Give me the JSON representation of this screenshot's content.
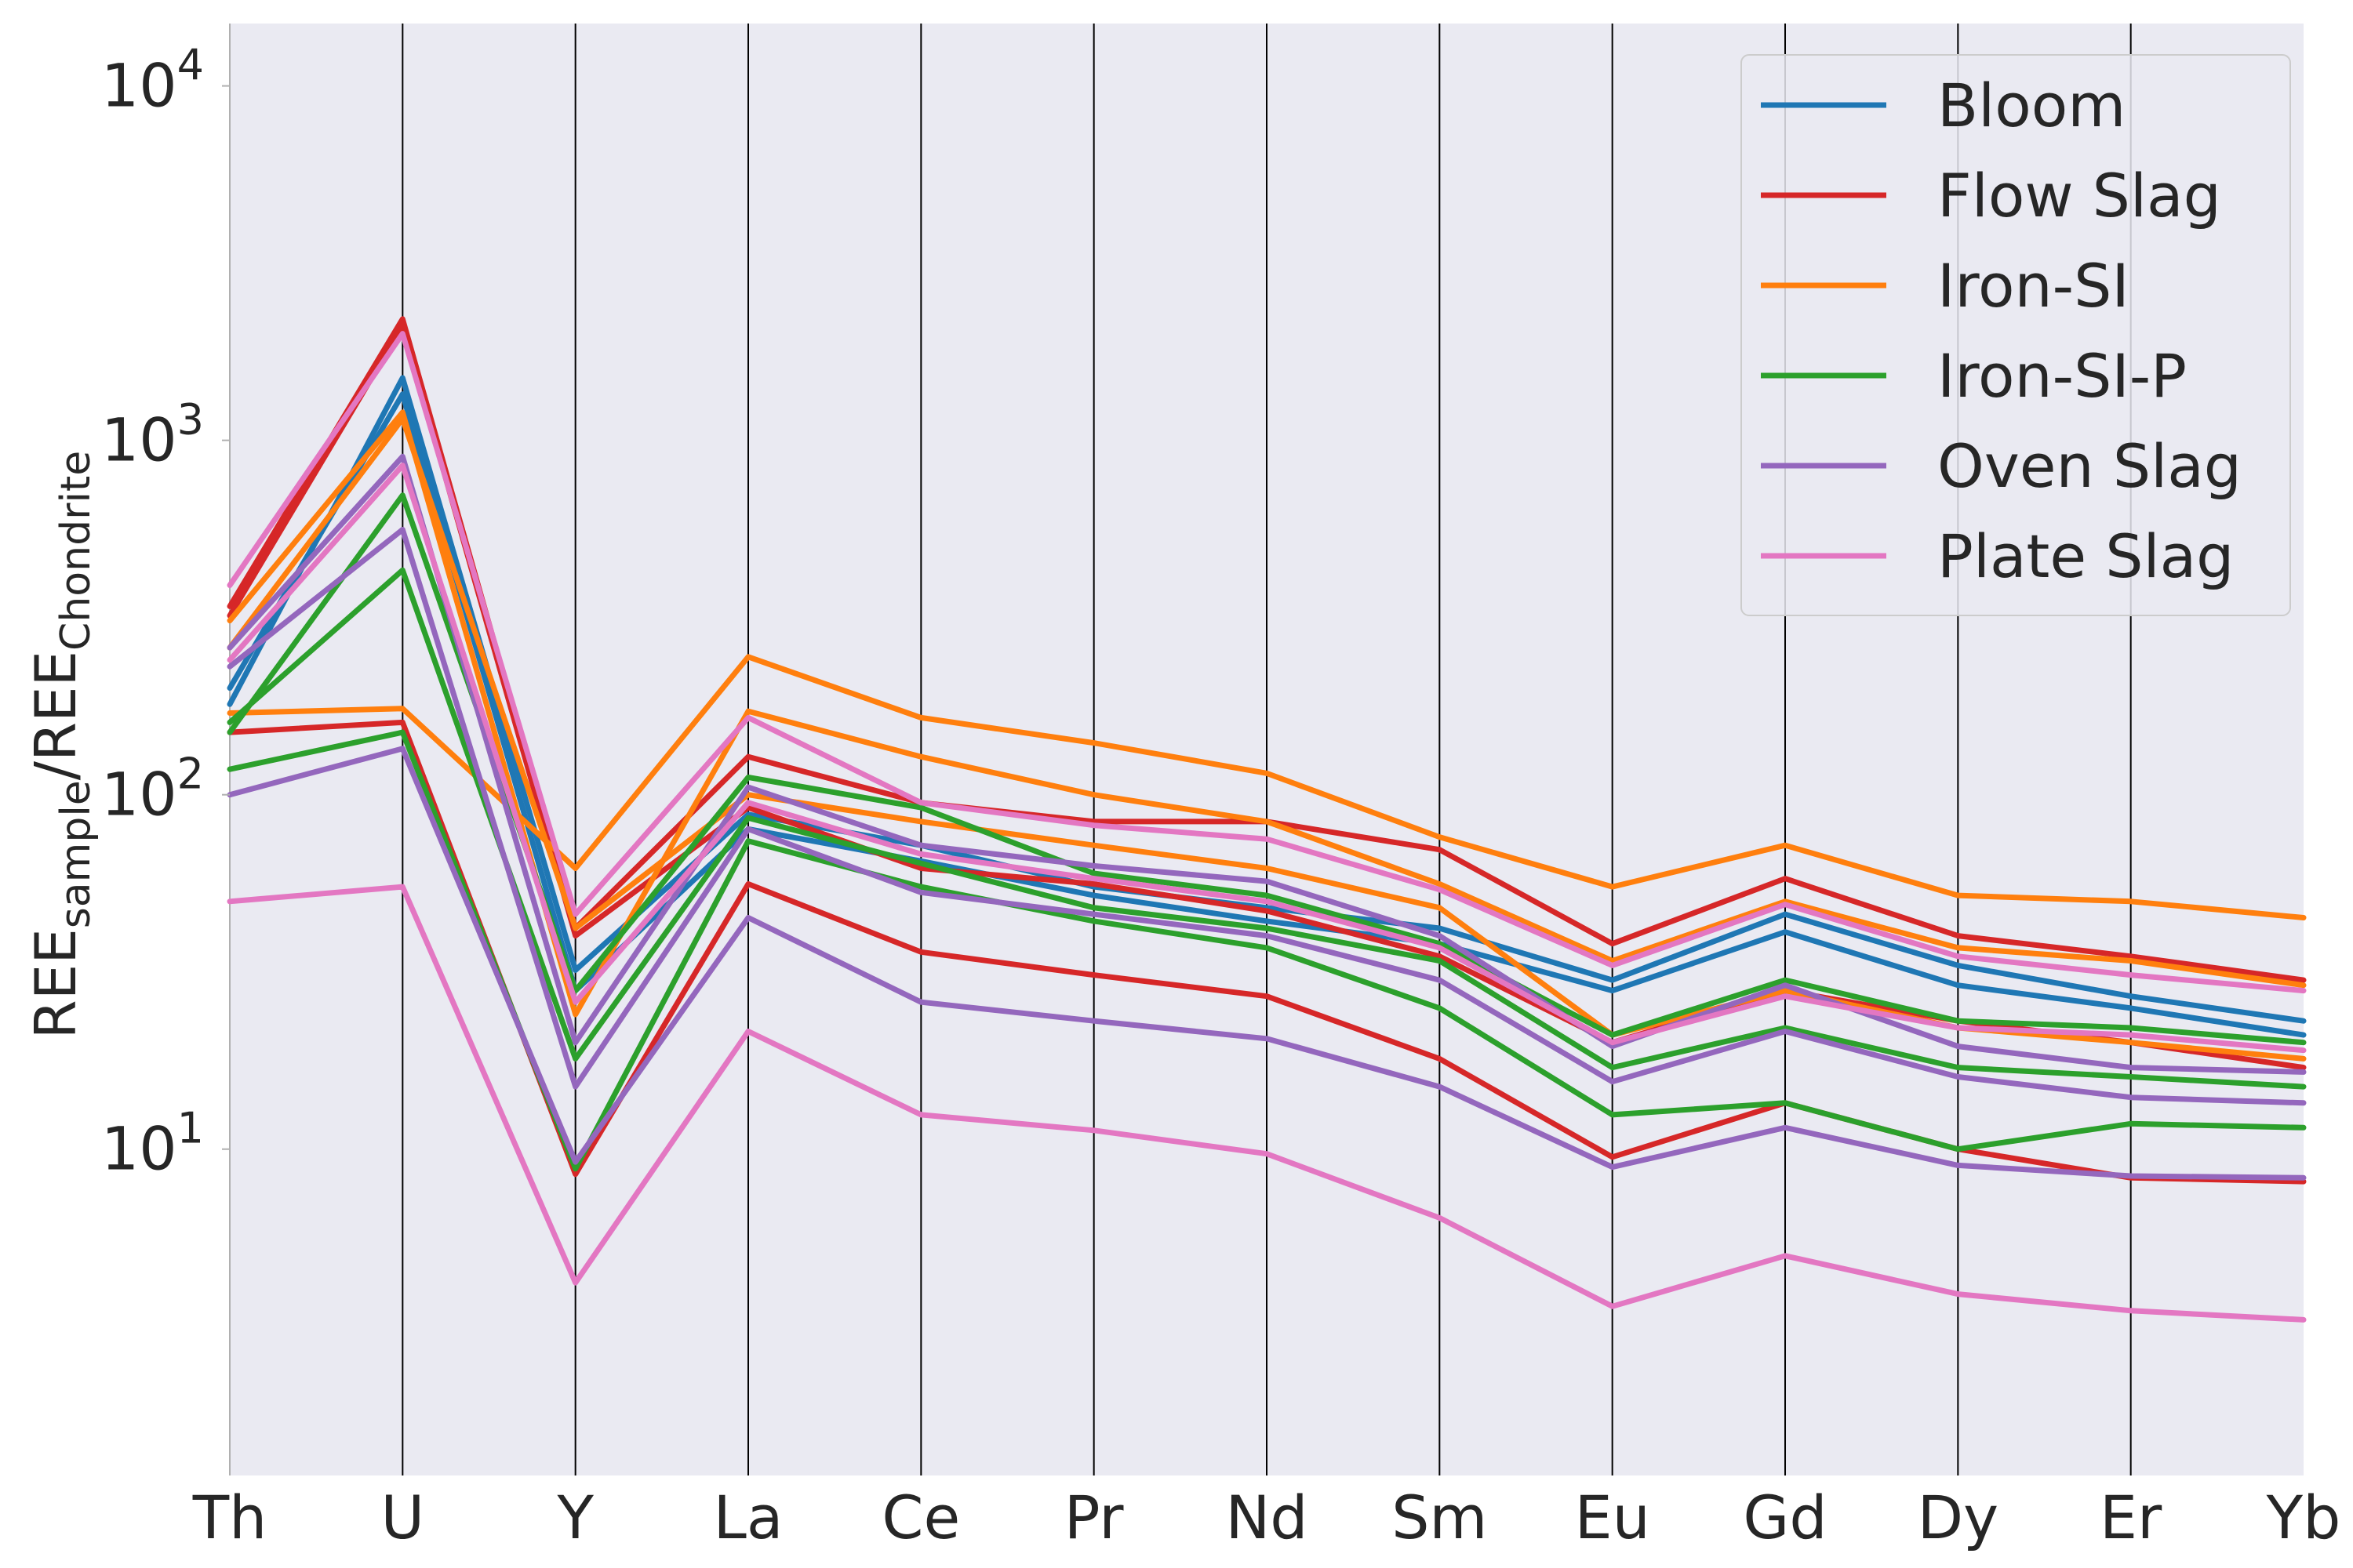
{
  "chart_data": {
    "type": "line",
    "title": "",
    "xlabel": "",
    "ylabel": {
      "base": "REE",
      "sub1": "sample",
      "sep": "/REE",
      "sub2": "Chondrite"
    },
    "y_scale": "log",
    "ylim": [
      1.2,
      15000
    ],
    "y_ticks": [
      {
        "value": 10,
        "base": "10",
        "exp": "1"
      },
      {
        "value": 100,
        "base": "10",
        "exp": "2"
      },
      {
        "value": 1000,
        "base": "10",
        "exp": "3"
      },
      {
        "value": 10000,
        "base": "10",
        "exp": "4"
      }
    ],
    "categories": [
      "Th",
      "U",
      "Y",
      "La",
      "Ce",
      "Pr",
      "Nd",
      "Sm",
      "Eu",
      "Gd",
      "Dy",
      "Er",
      "Yb"
    ],
    "grid": "vertical lines at each category",
    "legend_position": "top-right",
    "legend": [
      {
        "name": "Bloom",
        "color": "#1f77b4"
      },
      {
        "name": "Flow Slag",
        "color": "#d62728"
      },
      {
        "name": "Iron-SI",
        "color": "#ff7f0e"
      },
      {
        "name": "Iron-SI-P",
        "color": "#2ca02c"
      },
      {
        "name": "Oven Slag",
        "color": "#9467bd"
      },
      {
        "name": "Plate Slag",
        "color": "#e377c2"
      }
    ],
    "series": [
      {
        "group": "Bloom",
        "color": "#1f77b4",
        "values": [
          180,
          1500,
          32,
          88,
          72,
          55,
          48,
          42,
          30,
          46,
          33,
          27,
          23
        ]
      },
      {
        "group": "Bloom",
        "color": "#1f77b4",
        "values": [
          200,
          1350,
          28,
          80,
          65,
          52,
          44,
          38,
          28,
          41,
          29,
          25,
          21
        ]
      },
      {
        "group": "Flow Slag",
        "color": "#d62728",
        "values": [
          340,
          2200,
          42,
          128,
          95,
          84,
          84,
          70,
          38,
          58,
          40,
          35,
          30
        ]
      },
      {
        "group": "Flow Slag",
        "color": "#d62728",
        "values": [
          150,
          160,
          8.5,
          56,
          36,
          31,
          27,
          18,
          9.5,
          13.5,
          10,
          8.3,
          8.1
        ]
      },
      {
        "group": "Flow Slag",
        "color": "#d62728",
        "values": [
          320,
          2100,
          40,
          92,
          62,
          56,
          47,
          35,
          20,
          28,
          23,
          20,
          17
        ]
      },
      {
        "group": "Iron-SI",
        "color": "#ff7f0e",
        "values": [
          170,
          175,
          62,
          245,
          165,
          140,
          115,
          76,
          55,
          72,
          52,
          50,
          45
        ]
      },
      {
        "group": "Iron-SI",
        "color": "#ff7f0e",
        "values": [
          310,
          1200,
          24,
          172,
          128,
          100,
          84,
          56,
          34,
          50,
          37,
          34,
          29
        ]
      },
      {
        "group": "Iron-SI",
        "color": "#ff7f0e",
        "values": [
          260,
          1150,
          42,
          100,
          84,
          72,
          62,
          48,
          21,
          28,
          22,
          20,
          18
        ]
      },
      {
        "group": "Iron-SI-P",
        "color": "#2ca02c",
        "values": [
          150,
          700,
          28,
          112,
          92,
          60,
          52,
          38,
          21,
          30,
          23,
          22,
          20
        ]
      },
      {
        "group": "Iron-SI-P",
        "color": "#2ca02c",
        "values": [
          118,
          150,
          8.8,
          74,
          55,
          44,
          37,
          25,
          12.5,
          13.5,
          10,
          11.8,
          11.5
        ]
      },
      {
        "group": "Iron-SI-P",
        "color": "#2ca02c",
        "values": [
          160,
          430,
          18,
          86,
          64,
          48,
          42,
          34,
          17,
          22,
          17,
          16,
          15
        ]
      },
      {
        "group": "Oven Slag",
        "color": "#9467bd",
        "values": [
          100,
          135,
          9.2,
          45,
          26,
          23,
          20.5,
          15,
          8.9,
          11.5,
          9,
          8.4,
          8.3
        ]
      },
      {
        "group": "Oven Slag",
        "color": "#9467bd",
        "values": [
          230,
          560,
          15,
          80,
          53,
          46,
          40,
          30,
          15.5,
          21.5,
          16,
          14,
          13.5
        ]
      },
      {
        "group": "Oven Slag",
        "color": "#9467bd",
        "values": [
          260,
          900,
          20,
          105,
          72,
          63,
          57,
          40,
          19.5,
          29,
          19.5,
          17,
          16.5
        ]
      },
      {
        "group": "Plate Slag",
        "color": "#e377c2",
        "values": [
          50,
          55,
          4.2,
          21.5,
          12.5,
          11.3,
          9.7,
          6.4,
          3.6,
          5,
          3.9,
          3.5,
          3.3
        ]
      },
      {
        "group": "Plate Slag",
        "color": "#e377c2",
        "values": [
          390,
          2000,
          46,
          165,
          95,
          82,
          75,
          54,
          33,
          49,
          35,
          31,
          28
        ]
      },
      {
        "group": "Plate Slag",
        "color": "#e377c2",
        "values": [
          240,
          850,
          26,
          95,
          68,
          58,
          50,
          37,
          20,
          27,
          22,
          21,
          19
        ]
      }
    ]
  }
}
